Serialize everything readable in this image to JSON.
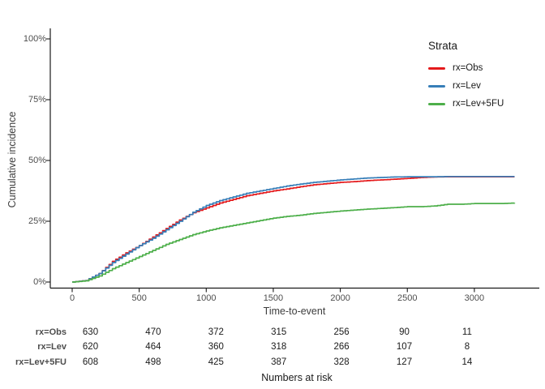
{
  "figure": {
    "ylabel": "Cumulative incidence",
    "xlabel": "Time-to-event"
  },
  "chart_data": {
    "type": "line",
    "subtype": "cumulative-incidence-step-curves",
    "title": "",
    "xlabel": "Time-to-event",
    "ylabel": "Cumulative incidence",
    "xlim": [
      0,
      3300
    ],
    "ylim": [
      0,
      100
    ],
    "x_ticks": [
      0,
      500,
      1000,
      1500,
      2000,
      2500,
      3000
    ],
    "y_ticks": [
      0,
      25,
      50,
      75,
      100
    ],
    "y_tick_suffix": "%",
    "grid": false,
    "legend": {
      "title": "Strata",
      "position": "right-top"
    },
    "x": [
      0,
      100,
      200,
      300,
      400,
      500,
      600,
      700,
      800,
      900,
      1000,
      1100,
      1200,
      1300,
      1400,
      1500,
      1600,
      1700,
      1800,
      1900,
      2000,
      2100,
      2200,
      2300,
      2400,
      2500,
      2600,
      2700,
      2800,
      2900,
      3000,
      3100,
      3200,
      3300
    ],
    "series": [
      {
        "name": "rx=Obs",
        "color": "#E41A1C",
        "values": [
          0,
          0.6,
          3.5,
          8.5,
          12,
          15,
          18.5,
          22,
          25.5,
          28.5,
          30.5,
          32.5,
          34,
          35.5,
          36.5,
          37.5,
          38.3,
          39.2,
          40,
          40.5,
          41,
          41.3,
          41.7,
          42,
          42.3,
          42.6,
          43,
          43.2,
          43.3,
          43.3,
          43.3,
          43.3,
          43.3,
          43.3
        ]
      },
      {
        "name": "rx=Lev",
        "color": "#377EB8",
        "values": [
          0,
          0.6,
          3.5,
          8,
          11.5,
          15,
          18,
          21.5,
          25,
          28.7,
          31.5,
          33.5,
          35,
          36.5,
          37.5,
          38.5,
          39.5,
          40.3,
          41,
          41.5,
          42,
          42.4,
          42.8,
          43,
          43.2,
          43.3,
          43.3,
          43.3,
          43.4,
          43.4,
          43.4,
          43.4,
          43.4,
          43.4
        ]
      },
      {
        "name": "rx=Lev+5FU",
        "color": "#4DAF4A",
        "values": [
          0,
          0.5,
          2.5,
          5.5,
          8,
          10.5,
          13,
          15.5,
          17.5,
          19.5,
          21,
          22.3,
          23.3,
          24.3,
          25.3,
          26.3,
          27,
          27.5,
          28.2,
          28.7,
          29.2,
          29.6,
          30,
          30.3,
          30.6,
          31,
          31,
          31.3,
          32,
          32,
          32.3,
          32.3,
          32.3,
          32.5
        ]
      }
    ]
  },
  "risk_table": {
    "caption": "Numbers at risk",
    "times": [
      0,
      500,
      1000,
      1500,
      2000,
      2500,
      3000
    ],
    "rows": [
      {
        "label": "rx=Obs",
        "values": [
          630,
          470,
          372,
          315,
          256,
          90,
          11
        ]
      },
      {
        "label": "rx=Lev",
        "values": [
          620,
          464,
          360,
          318,
          266,
          107,
          8
        ]
      },
      {
        "label": "rx=Lev+5FU",
        "values": [
          608,
          498,
          425,
          387,
          328,
          127,
          14
        ]
      }
    ]
  }
}
